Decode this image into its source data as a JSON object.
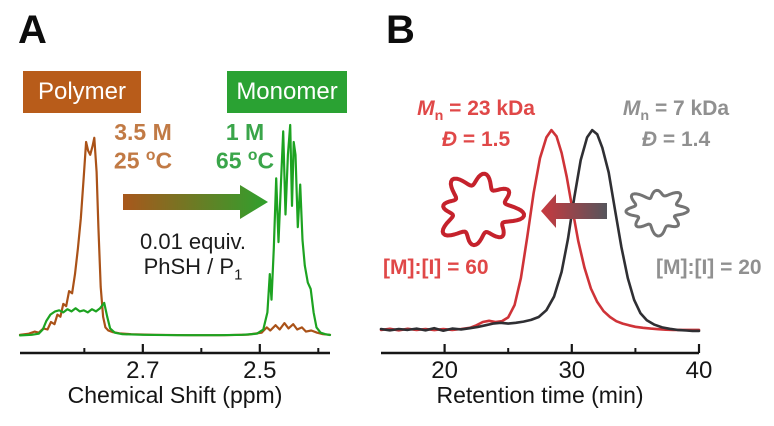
{
  "figure": {
    "panelA": {
      "label": "A",
      "polymer_badge": "Polymer",
      "monomer_badge": "Monomer",
      "polymer_badge_bg": "#b85c1a",
      "monomer_badge_bg": "#2aa233",
      "condition_polymer_html": "3.5 M<br>25 <sup>o</sup>C",
      "condition_polymer_text": "3.5 M, 25 °C",
      "condition_polymer_color": "#c17a45",
      "condition_monomer_html": "1 M<br>65 <sup>o</sup>C",
      "condition_monomer_text": "1 M, 65 °C",
      "condition_monomer_color": "#3aa54a",
      "arrow_caption_html": "0.01 equiv.<br>PhSH / P<sub>1</sub>",
      "arrow_caption_text": "0.01 equiv. PhSH / P1",
      "arrow_gradient": [
        "#a8571c",
        "#2fa02d"
      ]
    },
    "panelB": {
      "label": "B",
      "red_annotation_html": "<i>M</i><sub>n</sub> = 23 kDa<br><i>Đ</i> = 1.5",
      "red_annotation_text": "Mn = 23 kDa, Đ = 1.5",
      "gray_annotation_html": "<i>M</i><sub>n</sub> = 7 kDa<br><i>Đ</i> = 1.4",
      "gray_annotation_text": "Mn = 7 kDa, Đ = 1.4",
      "red_ratio": "[M]:[I] = 60",
      "gray_ratio": "[M]:[I] = 20",
      "red_color": "#e04848",
      "gray_color": "#909090",
      "arrow_gradient": [
        "#c9393f",
        "#55555c"
      ]
    }
  },
  "chart_data": [
    {
      "type": "line",
      "panel": "A",
      "title": "",
      "xlabel": "Chemical Shift (ppm)",
      "ylabel": "",
      "x_axis_reversed": true,
      "x_range": [
        2.91,
        2.38
      ],
      "x_ticks_major": [
        2.7,
        2.5
      ],
      "x_ticks_minor": [
        2.8,
        2.6,
        2.4
      ],
      "annotations": [
        "Polymer",
        "Monomer",
        "3.5 M 25 °C",
        "1 M 65 °C",
        "0.01 equiv. PhSH / P1"
      ],
      "series": [
        {
          "name": "polymer (3.5 M, 25 °C)",
          "color": "#aa5218",
          "points": [
            [
              2.91,
              0.015
            ],
            [
              2.895,
              0.02
            ],
            [
              2.885,
              0.03
            ],
            [
              2.878,
              0.025
            ],
            [
              2.87,
              0.045
            ],
            [
              2.863,
              0.04
            ],
            [
              2.857,
              0.075
            ],
            [
              2.851,
              0.065
            ],
            [
              2.846,
              0.11
            ],
            [
              2.841,
              0.1
            ],
            [
              2.836,
              0.16
            ],
            [
              2.831,
              0.15
            ],
            [
              2.826,
              0.22
            ],
            [
              2.821,
              0.21
            ],
            [
              2.816,
              0.3
            ],
            [
              2.811,
              0.42
            ],
            [
              2.806,
              0.56
            ],
            [
              2.801,
              0.76
            ],
            [
              2.797,
              0.92
            ],
            [
              2.7935,
              0.88
            ],
            [
              2.79,
              0.86
            ],
            [
              2.786,
              0.9
            ],
            [
              2.783,
              0.94
            ],
            [
              2.779,
              0.78
            ],
            [
              2.776,
              0.52
            ],
            [
              2.772,
              0.24
            ],
            [
              2.768,
              0.1
            ],
            [
              2.764,
              0.05
            ],
            [
              2.759,
              0.035
            ],
            [
              2.752,
              0.028
            ],
            [
              2.74,
              0.022
            ],
            [
              2.72,
              0.018
            ],
            [
              2.68,
              0.015
            ],
            [
              2.62,
              0.013
            ],
            [
              2.56,
              0.013
            ],
            [
              2.52,
              0.016
            ],
            [
              2.497,
              0.025
            ],
            [
              2.488,
              0.05
            ],
            [
              2.482,
              0.035
            ],
            [
              2.473,
              0.06
            ],
            [
              2.466,
              0.04
            ],
            [
              2.458,
              0.07
            ],
            [
              2.451,
              0.045
            ],
            [
              2.443,
              0.065
            ],
            [
              2.436,
              0.04
            ],
            [
              2.428,
              0.05
            ],
            [
              2.421,
              0.03
            ],
            [
              2.412,
              0.035
            ],
            [
              2.402,
              0.025
            ],
            [
              2.392,
              0.018
            ],
            [
              2.38,
              0.015
            ]
          ]
        },
        {
          "name": "monomer (1 M, 65 °C)",
          "color": "#1da321",
          "points": [
            [
              2.91,
              0.012
            ],
            [
              2.89,
              0.015
            ],
            [
              2.878,
              0.02
            ],
            [
              2.871,
              0.04
            ],
            [
              2.865,
              0.08
            ],
            [
              2.858,
              0.11
            ],
            [
              2.85,
              0.125
            ],
            [
              2.843,
              0.13
            ],
            [
              2.836,
              0.12
            ],
            [
              2.829,
              0.135
            ],
            [
              2.822,
              0.125
            ],
            [
              2.815,
              0.14
            ],
            [
              2.808,
              0.125
            ],
            [
              2.801,
              0.13
            ],
            [
              2.794,
              0.12
            ],
            [
              2.787,
              0.135
            ],
            [
              2.78,
              0.125
            ],
            [
              2.773,
              0.14
            ],
            [
              2.766,
              0.165
            ],
            [
              2.761,
              0.1
            ],
            [
              2.756,
              0.045
            ],
            [
              2.748,
              0.025
            ],
            [
              2.735,
              0.018
            ],
            [
              2.7,
              0.015
            ],
            [
              2.64,
              0.013
            ],
            [
              2.57,
              0.013
            ],
            [
              2.53,
              0.015
            ],
            [
              2.505,
              0.02
            ],
            [
              2.494,
              0.04
            ],
            [
              2.487,
              0.12
            ],
            [
              2.483,
              0.3
            ],
            [
              2.48,
              0.18
            ],
            [
              2.476,
              0.42
            ],
            [
              2.472,
              0.75
            ],
            [
              2.468,
              0.45
            ],
            [
              2.464,
              0.72
            ],
            [
              2.46,
              0.97
            ],
            [
              2.456,
              0.58
            ],
            [
              2.452,
              0.86
            ],
            [
              2.448,
              1.0
            ],
            [
              2.445,
              0.62
            ],
            [
              2.442,
              0.92
            ],
            [
              2.439,
              0.86
            ],
            [
              2.435,
              0.52
            ],
            [
              2.431,
              0.72
            ],
            [
              2.427,
              0.46
            ],
            [
              2.423,
              0.34
            ],
            [
              2.418,
              0.26
            ],
            [
              2.413,
              0.23
            ],
            [
              2.408,
              0.12
            ],
            [
              2.403,
              0.05
            ],
            [
              2.396,
              0.025
            ],
            [
              2.388,
              0.018
            ],
            [
              2.38,
              0.014
            ]
          ]
        }
      ]
    },
    {
      "type": "line",
      "panel": "B",
      "title": "",
      "xlabel": "Retention time (min)",
      "ylabel": "",
      "x_range": [
        15,
        40
      ],
      "x_ticks_major": [
        20,
        30,
        40
      ],
      "x_ticks_minor": [
        25,
        35
      ],
      "annotations": [
        "Mn = 23 kDa, Đ = 1.5",
        "Mn = 7 kDa, Đ = 1.4",
        "[M]:[I] = 60",
        "[M]:[I] = 20"
      ],
      "series": [
        {
          "name": "[M]:[I] = 60 (Mn = 23 kDa, Đ = 1.5)",
          "color": "#cf3338",
          "peak_retention_min": 28.4,
          "points": [
            [
              15,
              0.02
            ],
            [
              15.7,
              0.025
            ],
            [
              16.4,
              0.018
            ],
            [
              17.1,
              0.025
            ],
            [
              17.8,
              0.02
            ],
            [
              18.5,
              0.024
            ],
            [
              19.2,
              0.019
            ],
            [
              19.9,
              0.024
            ],
            [
              20.6,
              0.02
            ],
            [
              21.3,
              0.024
            ],
            [
              22,
              0.03
            ],
            [
              22.5,
              0.042
            ],
            [
              23,
              0.058
            ],
            [
              23.5,
              0.064
            ],
            [
              24,
              0.058
            ],
            [
              24.5,
              0.062
            ],
            [
              25,
              0.08
            ],
            [
              25.5,
              0.14
            ],
            [
              26,
              0.27
            ],
            [
              26.5,
              0.47
            ],
            [
              27,
              0.68
            ],
            [
              27.5,
              0.85
            ],
            [
              28,
              0.95
            ],
            [
              28.4,
              0.985
            ],
            [
              28.8,
              0.955
            ],
            [
              29.2,
              0.875
            ],
            [
              29.6,
              0.76
            ],
            [
              30,
              0.62
            ],
            [
              30.5,
              0.45
            ],
            [
              31,
              0.32
            ],
            [
              31.5,
              0.22
            ],
            [
              32,
              0.155
            ],
            [
              32.5,
              0.11
            ],
            [
              33,
              0.082
            ],
            [
              33.5,
              0.062
            ],
            [
              34,
              0.05
            ],
            [
              34.5,
              0.042
            ],
            [
              35,
              0.035
            ],
            [
              35.6,
              0.03
            ],
            [
              36.2,
              0.026
            ],
            [
              36.8,
              0.023
            ],
            [
              37.4,
              0.021
            ],
            [
              38,
              0.02
            ],
            [
              38.7,
              0.02
            ],
            [
              39.4,
              0.02
            ],
            [
              40,
              0.02
            ]
          ]
        },
        {
          "name": "[M]:[I] = 20 (Mn = 7 kDa, Đ = 1.4)",
          "color": "#2f2f33",
          "peak_retention_min": 31.8,
          "points": [
            [
              15,
              0.024
            ],
            [
              15.7,
              0.018
            ],
            [
              16.4,
              0.024
            ],
            [
              17.1,
              0.02
            ],
            [
              17.8,
              0.026
            ],
            [
              18.5,
              0.018
            ],
            [
              19.2,
              0.028
            ],
            [
              19.9,
              0.016
            ],
            [
              20.6,
              0.026
            ],
            [
              21.3,
              0.022
            ],
            [
              22,
              0.028
            ],
            [
              22.6,
              0.034
            ],
            [
              23.2,
              0.042
            ],
            [
              23.8,
              0.05
            ],
            [
              24.4,
              0.054
            ],
            [
              25,
              0.05
            ],
            [
              25.6,
              0.054
            ],
            [
              26.2,
              0.06
            ],
            [
              26.8,
              0.068
            ],
            [
              27.4,
              0.082
            ],
            [
              28,
              0.115
            ],
            [
              28.6,
              0.18
            ],
            [
              29.2,
              0.3
            ],
            [
              29.7,
              0.46
            ],
            [
              30.2,
              0.66
            ],
            [
              30.7,
              0.84
            ],
            [
              31.2,
              0.95
            ],
            [
              31.6,
              0.985
            ],
            [
              32,
              0.965
            ],
            [
              32.4,
              0.9
            ],
            [
              32.9,
              0.78
            ],
            [
              33.4,
              0.6
            ],
            [
              33.9,
              0.42
            ],
            [
              34.4,
              0.27
            ],
            [
              34.9,
              0.165
            ],
            [
              35.4,
              0.1
            ],
            [
              35.9,
              0.066
            ],
            [
              36.5,
              0.045
            ],
            [
              37.1,
              0.032
            ],
            [
              37.7,
              0.025
            ],
            [
              38.3,
              0.02
            ],
            [
              39,
              0.017
            ],
            [
              39.5,
              0.015
            ],
            [
              40,
              0.015
            ]
          ]
        }
      ]
    }
  ]
}
